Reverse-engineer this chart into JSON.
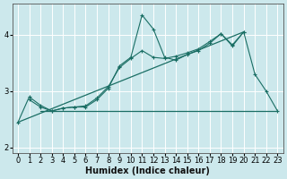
{
  "xlabel": "Humidex (Indice chaleur)",
  "ylabel": "",
  "bg_color": "#cce8ec",
  "grid_color": "#ffffff",
  "line_color": "#1a6e64",
  "xlim": [
    -0.5,
    23.5
  ],
  "ylim": [
    1.9,
    4.55
  ],
  "yticks": [
    2,
    3,
    4
  ],
  "xticks": [
    0,
    1,
    2,
    3,
    4,
    5,
    6,
    7,
    8,
    9,
    10,
    11,
    12,
    13,
    14,
    15,
    16,
    17,
    18,
    19,
    20,
    21,
    22,
    23
  ],
  "series": [
    {
      "x": [
        0,
        1,
        2,
        3,
        4,
        5,
        6,
        7,
        8,
        9,
        10,
        11,
        12,
        13,
        14,
        15,
        16,
        17,
        18,
        19,
        20,
        21,
        22,
        23
      ],
      "y": [
        2.45,
        2.9,
        2.75,
        2.65,
        2.7,
        2.72,
        2.72,
        2.85,
        3.05,
        3.45,
        3.6,
        4.35,
        4.1,
        3.6,
        3.55,
        3.65,
        3.72,
        3.85,
        4.02,
        3.8,
        4.05,
        3.3,
        3.0,
        2.65
      ],
      "marker": "+"
    },
    {
      "x": [
        1,
        2,
        3,
        4,
        5,
        6,
        7,
        8,
        9,
        10,
        11,
        12,
        13,
        14,
        15,
        16,
        17,
        18,
        19,
        20
      ],
      "y": [
        2.85,
        2.72,
        2.65,
        2.7,
        2.72,
        2.74,
        2.88,
        3.08,
        3.42,
        3.58,
        3.72,
        3.6,
        3.58,
        3.62,
        3.68,
        3.75,
        3.88,
        4.02,
        3.82,
        4.05
      ],
      "marker": "+"
    },
    {
      "x": [
        2,
        23
      ],
      "y": [
        2.65,
        2.65
      ],
      "marker": null
    },
    {
      "x": [
        0,
        20
      ],
      "y": [
        2.45,
        4.05
      ],
      "marker": null
    }
  ]
}
